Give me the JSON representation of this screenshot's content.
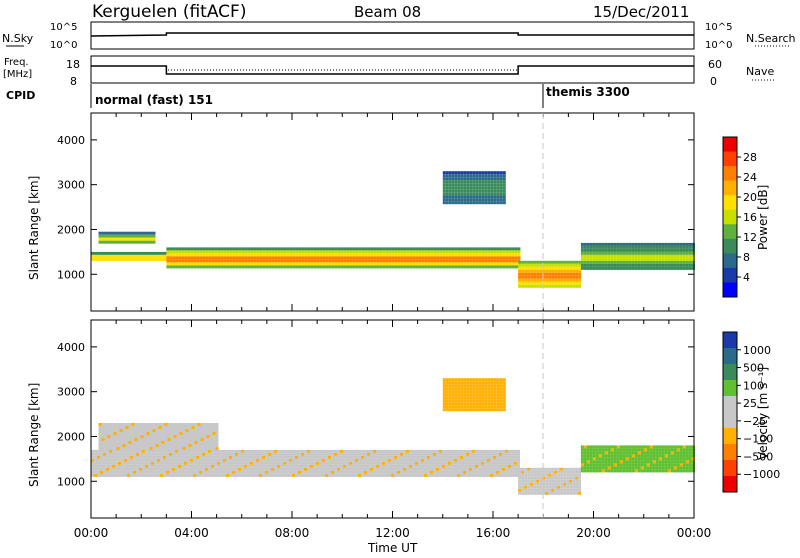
{
  "header": {
    "station": "Kerguelen (fitACF)",
    "beam": "Beam 08",
    "date": "15/Dec/2011"
  },
  "status_panels": {
    "nsky_label": "N.Sky",
    "nsky_ticks": [
      "10^5",
      "10^0"
    ],
    "nsearch_label": "N.Search",
    "nsearch_ticks": [
      "10^5",
      "10^0"
    ],
    "freq_label_line1": "Freq.",
    "freq_label_line2": "[MHz]",
    "freq_ticks": [
      "18",
      "8"
    ],
    "nave_label": "Nave",
    "nave_ticks": [
      "60",
      "0"
    ],
    "cpid_label": "CPID",
    "cpid_segments": [
      {
        "text": "normal (fast) 151",
        "start_hour": 0
      },
      {
        "text": "themis 3300",
        "start_hour": 18.0
      }
    ]
  },
  "chart_data": [
    {
      "type": "heatmap",
      "name": "power-panel",
      "xlabel": "",
      "ylabel": "Slant Range [km]",
      "x_ticks": [
        "00:00",
        "04:00",
        "08:00",
        "12:00",
        "16:00",
        "20:00",
        "00:00"
      ],
      "xlim_hours": [
        0,
        24
      ],
      "y_ticks": [
        1000,
        2000,
        3000,
        4000
      ],
      "ylim": [
        180,
        4600
      ],
      "colorbar_label": "Power [dB]",
      "colorbar_ticks": [
        "28",
        "24",
        "20",
        "16",
        "12",
        "8",
        "4"
      ],
      "colorbar_colors": [
        "#ee0000",
        "#ff4000",
        "#ff8000",
        "#ffb000",
        "#ffe000",
        "#c8e000",
        "#60b040",
        "#3a8a5a",
        "#2a6a8a",
        "#1a3aaa",
        "#0000ff"
      ],
      "bands": [
        {
          "start": 0,
          "end": 3,
          "range": [
            1300,
            1500
          ],
          "level": 0.7
        },
        {
          "start": 0.3,
          "end": 2.5,
          "range": [
            1700,
            1950
          ],
          "level": 0.6
        },
        {
          "start": 3,
          "end": 17,
          "range": [
            1150,
            1600
          ],
          "level": 0.85
        },
        {
          "start": 17,
          "end": 19.5,
          "range": [
            700,
            1300
          ],
          "level": 0.9
        },
        {
          "start": 19.5,
          "end": 24,
          "range": [
            1100,
            1700
          ],
          "level": 0.5
        },
        {
          "start": 14,
          "end": 16.5,
          "range": [
            2600,
            3300
          ],
          "level": 0.35
        }
      ]
    },
    {
      "type": "heatmap",
      "name": "velocity-panel",
      "xlabel": "Time UT",
      "ylabel": "Slant Range [km]",
      "x_ticks": [
        "00:00",
        "04:00",
        "08:00",
        "12:00",
        "16:00",
        "20:00",
        "00:00"
      ],
      "xlim_hours": [
        0,
        24
      ],
      "y_ticks": [
        1000,
        2000,
        3000,
        4000
      ],
      "ylim": [
        180,
        4600
      ],
      "colorbar_label": "Velocity [m s⁻¹]",
      "colorbar_ticks": [
        "1000",
        "500",
        "100",
        "25",
        "−25",
        "−100",
        "−500",
        "−1000"
      ],
      "colorbar_colors": [
        "#1a3aaa",
        "#2a6a8a",
        "#3a8a5a",
        "#60c030",
        "#c8c8c8",
        "#c8c8c8",
        "#ffb000",
        "#ff8000",
        "#ff4000",
        "#ee0000"
      ],
      "bands": [
        {
          "start": 0,
          "end": 17,
          "range": [
            1100,
            1700
          ],
          "level": 0.0
        },
        {
          "start": 0.3,
          "end": 5,
          "range": [
            1700,
            2300
          ],
          "level": 0.0
        },
        {
          "start": 17,
          "end": 19.5,
          "range": [
            700,
            1300
          ],
          "level": 0.0
        },
        {
          "start": 19.5,
          "end": 24,
          "range": [
            1200,
            1800
          ],
          "level": 0.8
        },
        {
          "start": 14,
          "end": 16.5,
          "range": [
            2600,
            3300
          ],
          "level": 0.4
        }
      ]
    }
  ],
  "colors": {
    "ground_scatter": "#c0c0c0",
    "axis": "#000000"
  }
}
